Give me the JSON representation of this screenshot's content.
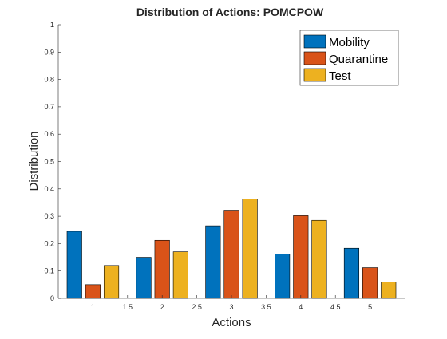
{
  "chart_data": {
    "type": "bar",
    "title": "Distribution of Actions: POMCPOW",
    "xlabel": "Actions",
    "ylabel": "Distribution",
    "categories": [
      1,
      2,
      3,
      4,
      5
    ],
    "xlim": [
      0.5,
      5.5
    ],
    "ylim": [
      0,
      1
    ],
    "xticks": [
      "1",
      "1.5",
      "2",
      "2.5",
      "3",
      "3.5",
      "4",
      "4.5",
      "5"
    ],
    "yticks": [
      "0",
      "0.1",
      "0.2",
      "0.3",
      "0.4",
      "0.5",
      "0.6",
      "0.7",
      "0.8",
      "0.9",
      "1"
    ],
    "grid": false,
    "legend_position": "top-right",
    "series": [
      {
        "name": "Mobility",
        "color": "#0072BD",
        "values": [
          0.245,
          0.15,
          0.265,
          0.162,
          0.183
        ]
      },
      {
        "name": "Quarantine",
        "color": "#D95319",
        "values": [
          0.05,
          0.212,
          0.322,
          0.302,
          0.112
        ]
      },
      {
        "name": "Test",
        "color": "#EDB120",
        "values": [
          0.12,
          0.17,
          0.363,
          0.285,
          0.06
        ]
      }
    ]
  }
}
